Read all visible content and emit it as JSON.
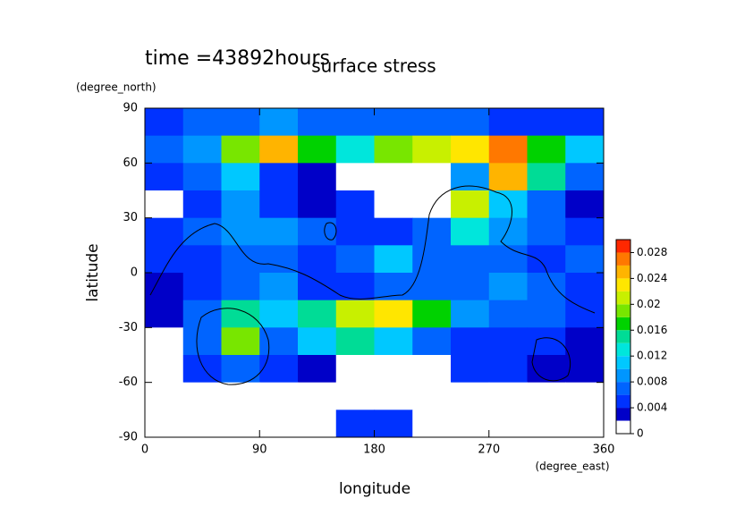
{
  "chart_data": {
    "type": "contour",
    "title": "surface stress",
    "subtitle": "time =43892hours",
    "x_label": "longitude",
    "x_unit": "(degree_east)",
    "y_label": "latitude",
    "y_unit": "(degree_north)",
    "xlim": [
      0,
      360
    ],
    "xticks": [
      0,
      90,
      180,
      270,
      360
    ],
    "ylim": [
      -90,
      90
    ],
    "yticks": [
      -90,
      -60,
      -30,
      0,
      30,
      60,
      90
    ],
    "lon": [
      15,
      45,
      75,
      105,
      135,
      165,
      195,
      225,
      255,
      285,
      315,
      345
    ],
    "lat": [
      82.5,
      67.5,
      52.5,
      37.5,
      22.5,
      7.5,
      -7.5,
      -22.5,
      -37.5,
      -52.5,
      -67.5,
      -82.5
    ],
    "z": [
      [
        0.004,
        0.006,
        0.006,
        0.008,
        0.006,
        0.006,
        0.006,
        0.006,
        0.006,
        0.004,
        0.004,
        0.004
      ],
      [
        0.006,
        0.008,
        0.018,
        0.024,
        0.016,
        0.012,
        0.018,
        0.02,
        0.022,
        0.026,
        0.016,
        0.01
      ],
      [
        0.004,
        0.006,
        0.01,
        0.004,
        0.002,
        0,
        0,
        0,
        0.008,
        0.024,
        0.014,
        0.006
      ],
      [
        0,
        0.004,
        0.008,
        0.004,
        0.002,
        0.004,
        0,
        0,
        0.02,
        0.01,
        0.006,
        0.002
      ],
      [
        0.004,
        0.006,
        0.008,
        0.008,
        0.006,
        0.004,
        0.004,
        0.006,
        0.012,
        0.008,
        0.006,
        0.004
      ],
      [
        0.004,
        0.004,
        0.006,
        0.006,
        0.004,
        0.006,
        0.01,
        0.006,
        0.006,
        0.006,
        0.004,
        0.006
      ],
      [
        0.002,
        0.004,
        0.006,
        0.008,
        0.004,
        0.004,
        0.006,
        0.006,
        0.006,
        0.008,
        0.006,
        0.004
      ],
      [
        0.002,
        0.006,
        0.014,
        0.01,
        0.014,
        0.02,
        0.022,
        0.016,
        0.008,
        0.006,
        0.006,
        0.004
      ],
      [
        0,
        0.006,
        0.018,
        0.006,
        0.01,
        0.014,
        0.01,
        0.006,
        0.004,
        0.004,
        0.004,
        0.002
      ],
      [
        0,
        0.004,
        0.006,
        0.004,
        0.002,
        0,
        0,
        0,
        0.004,
        0.004,
        0.002,
        0.002
      ],
      [
        0,
        0,
        0,
        0,
        0,
        0,
        0,
        0,
        0,
        0,
        0,
        0
      ],
      [
        0,
        0,
        0,
        0,
        0,
        0.004,
        0.004,
        0,
        0,
        0,
        0,
        0
      ]
    ],
    "levels": [
      0,
      0.002,
      0.004,
      0.006,
      0.008,
      0.01,
      0.012,
      0.014,
      0.016,
      0.018,
      0.02,
      0.022,
      0.024,
      0.026,
      0.028,
      0.03
    ],
    "colors": [
      "#ffffff",
      "#0000c8",
      "#0032ff",
      "#0064ff",
      "#0096ff",
      "#00c8ff",
      "#00e6dc",
      "#00dc96",
      "#00d200",
      "#78e600",
      "#c8f000",
      "#ffe600",
      "#ffb400",
      "#ff7800",
      "#ff2800"
    ],
    "cbar_lim": [
      0,
      0.03
    ],
    "cbar_ticks": [
      0,
      0.004,
      0.008,
      0.012,
      0.016,
      0.02,
      0.024,
      0.028
    ]
  }
}
